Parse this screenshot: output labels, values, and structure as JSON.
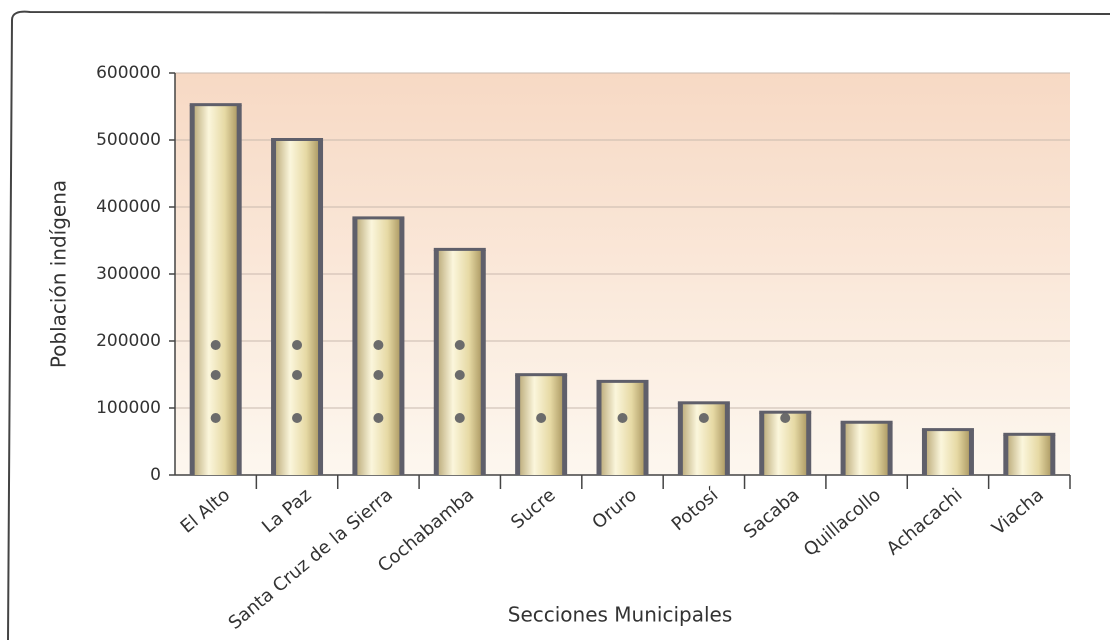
{
  "chart_data": {
    "type": "bar",
    "x_label": "Secciones Municipales",
    "y_label": "Población indígena",
    "categories": [
      "El Alto",
      "La Paz",
      "Santa Cruz de la Sierra",
      "Cochabamba",
      "Sucre",
      "Oruro",
      "Potosí",
      "Sacaba",
      "Quillacollo",
      "Achacachi",
      "Viacha"
    ],
    "values": [
      552000,
      500000,
      383000,
      336000,
      149000,
      139000,
      107000,
      93000,
      78000,
      67000,
      60000
    ],
    "color": "#e9dfb0",
    "ylim": [
      0,
      600000
    ],
    "yticks": [
      0,
      100000,
      200000,
      300000,
      400000,
      500000,
      600000
    ],
    "grid": true
  }
}
